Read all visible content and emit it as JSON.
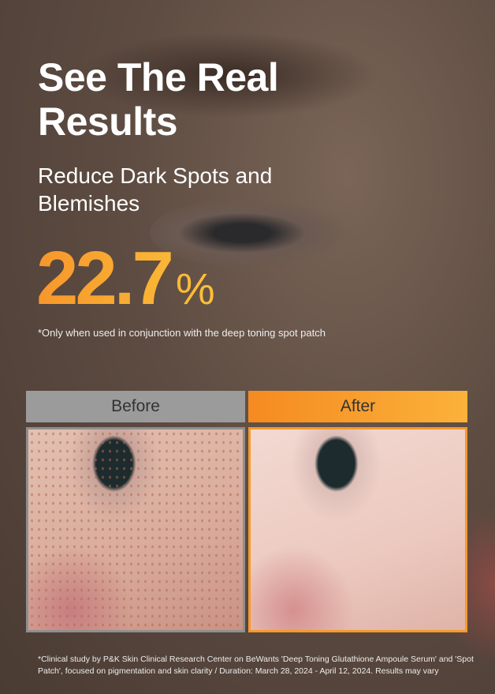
{
  "headline": "See The Real Results",
  "subheadline": "Reduce Dark Spots and Blemishes",
  "stat": {
    "value": "22.7",
    "unit": "%"
  },
  "stat_note": "*Only when used in conjunction with the deep toning spot patch",
  "comparison": {
    "before_label": "Before",
    "after_label": "After"
  },
  "colors": {
    "accent": "#f7962b",
    "accent_light": "#fbc23a",
    "before_bar": "#9b9b9b"
  },
  "footnote": "*Clinical study by P&K Skin Clinical Research Center on BeWants 'Deep Toning Glutathione Ampoule Serum' and 'Spot Patch', focused on pigmentation and skin clarity / Duration: March 28, 2024 - April 12, 2024. Results may vary"
}
